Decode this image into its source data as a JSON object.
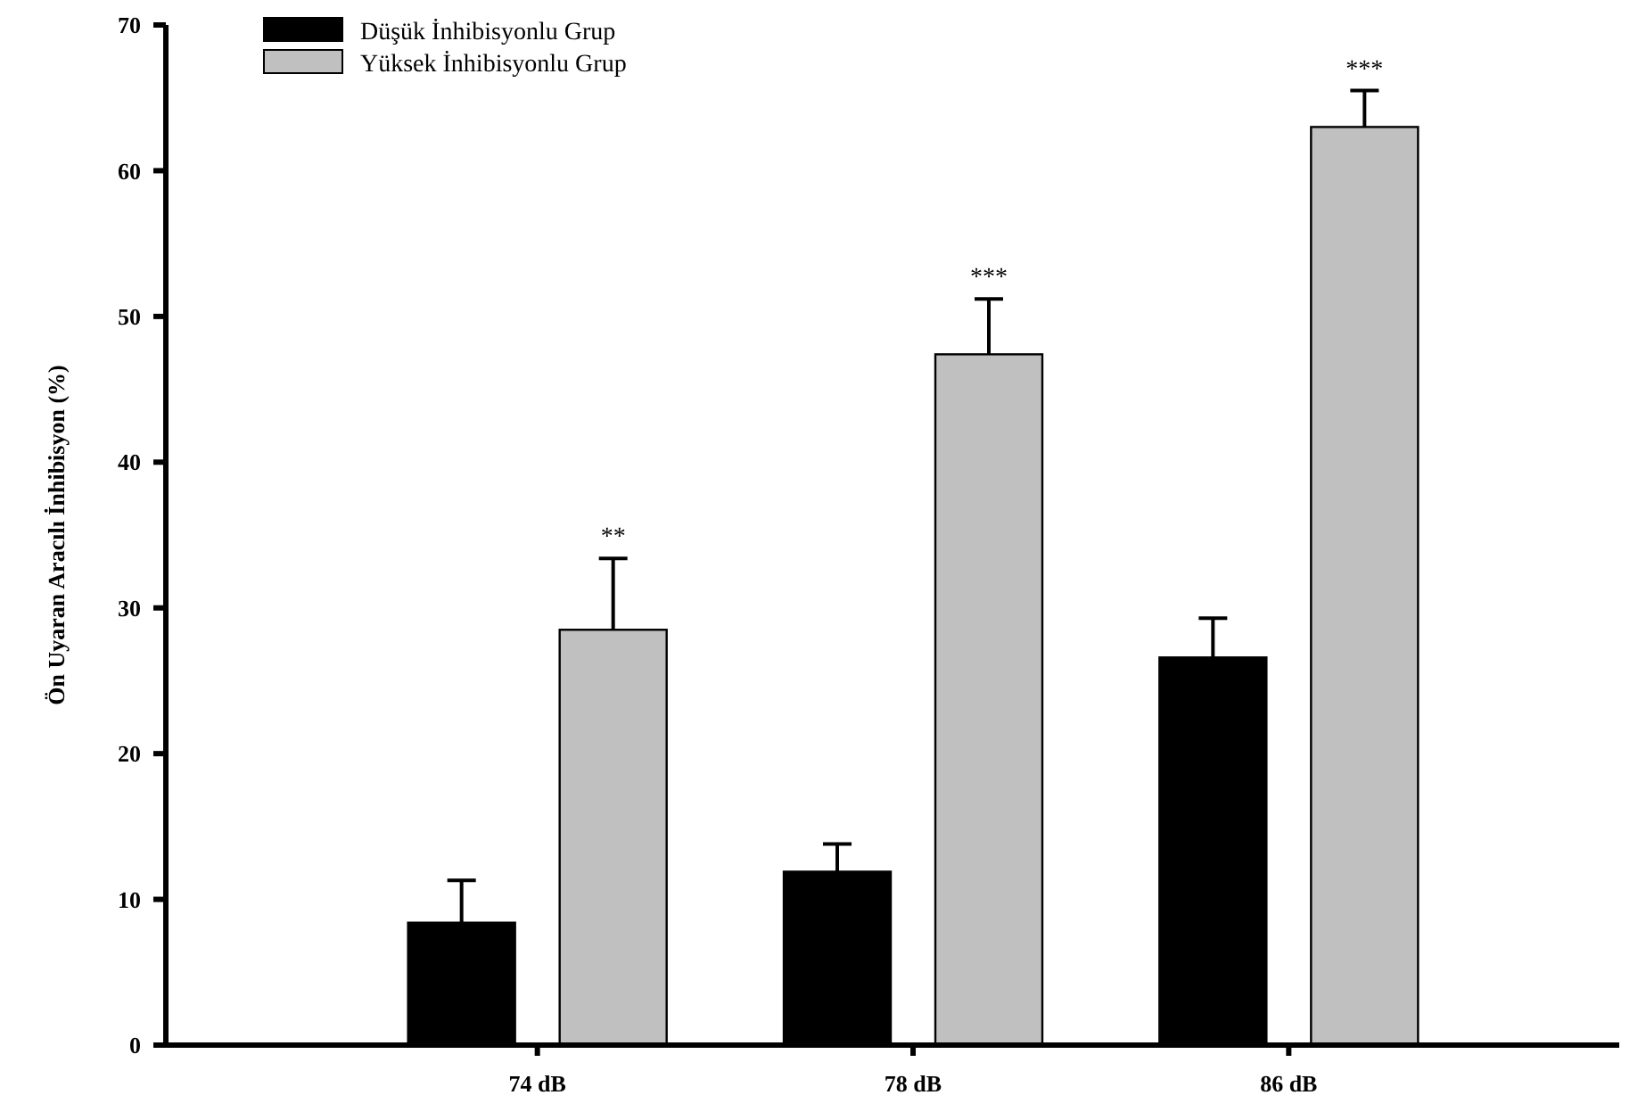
{
  "chart_data": {
    "type": "bar",
    "ylabel": "Ön Uyaran Aracılı İnhibisyon (%)",
    "categories": [
      "74 dB",
      "78 dB",
      "86 dB"
    ],
    "series": [
      {
        "name": "Düşük İnhibisyonlu Grup",
        "color": "#000000",
        "values": [
          8.4,
          11.9,
          26.6
        ],
        "errors": [
          [
            8.4,
            11.3
          ],
          [
            11.9,
            13.8
          ],
          [
            26.6,
            29.3
          ]
        ]
      },
      {
        "name": "Yüksek İnhibisyonlu Grup",
        "color": "#c0c0c0",
        "values": [
          28.5,
          47.4,
          63.0
        ],
        "errors": [
          [
            28.5,
            33.4
          ],
          [
            47.4,
            51.2
          ],
          [
            63.0,
            65.5
          ]
        ]
      }
    ],
    "ylim": [
      0,
      70
    ],
    "yticks": [
      0,
      10,
      20,
      30,
      40,
      50,
      60,
      70
    ],
    "legend": "top left",
    "grid": false,
    "annotations": [
      "**",
      "***",
      "***"
    ]
  }
}
